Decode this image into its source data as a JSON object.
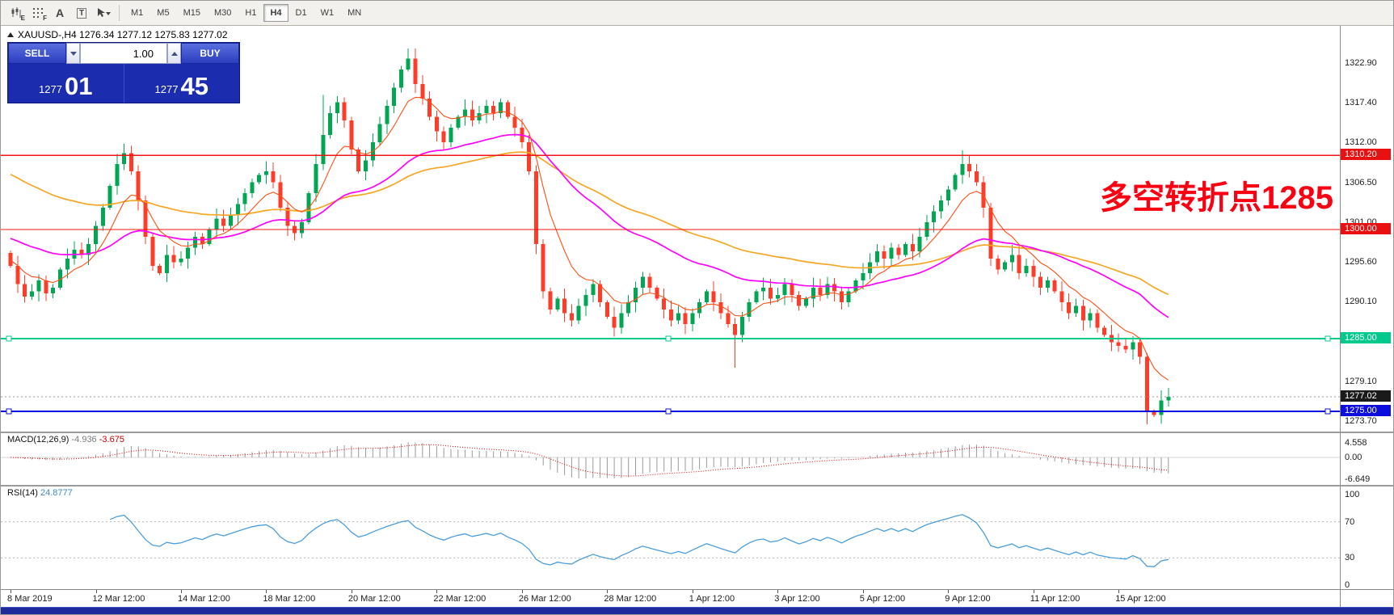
{
  "toolbar": {
    "icons": [
      {
        "name": "chart-type-icon",
        "letter": "E"
      },
      {
        "name": "grid-icon",
        "letter": "F"
      },
      {
        "name": "text-a-icon",
        "letter": "A"
      },
      {
        "name": "text-box-icon",
        "letter": "T"
      },
      {
        "name": "cursor-dropdown-icon",
        "letter": ""
      }
    ],
    "timeframes": [
      "M1",
      "M5",
      "M15",
      "M30",
      "H1",
      "H4",
      "D1",
      "W1",
      "MN"
    ],
    "active_timeframe": "H4"
  },
  "chart": {
    "symbol_line": "XAUUSD-,H4  1276.34 1277.12 1275.83 1277.02",
    "annotation": "多空转折点1285",
    "trade_panel": {
      "sell_label": "SELL",
      "buy_label": "BUY",
      "volume": "1.00",
      "sell_price_small": "1277",
      "sell_price_big": "01",
      "buy_price_small": "1277",
      "buy_price_big": "45"
    },
    "axis_labels": [
      "1322.90",
      "1317.40",
      "1312.00",
      "1306.50",
      "1301.00",
      "1295.60",
      "1290.10",
      "1279.10",
      "1273.70"
    ],
    "axis_values": [
      1322.9,
      1317.4,
      1312.0,
      1306.5,
      1301.0,
      1295.6,
      1290.1,
      1279.1,
      1273.7
    ],
    "price_tags": [
      {
        "text": "1310.20",
        "value": 1310.2,
        "color": "#e81010"
      },
      {
        "text": "1300.00",
        "value": 1300.0,
        "color": "#e81010"
      },
      {
        "text": "1285.00",
        "value": 1285.0,
        "color": "#00c98d"
      },
      {
        "text": "1277.02",
        "value": 1277.02,
        "color": "#1a1a1a"
      },
      {
        "text": "1275.00",
        "value": 1275.0,
        "color": "#0d0de0"
      }
    ]
  },
  "colors": {
    "up": "#00a651",
    "down": "#ff3c28",
    "ma_fast": "#ff4f12",
    "ma_mid": "#ff00ff",
    "ma_slow": "#f5a623",
    "macd_hist": "#9a9a9a",
    "macd_signal": "#e00000",
    "rsi": "#4a9ede",
    "annotation": "#fb0012"
  },
  "chart_data": {
    "type": "candlestick",
    "symbol": "XAUUSD",
    "timeframe": "H4",
    "title": "XAUUSD-,H4",
    "ylim": [
      1272.2,
      1328.0
    ],
    "current_price": 1277.02,
    "open_first": 1296.8,
    "closes": [
      1295.0,
      1292.5,
      1290.8,
      1291.5,
      1293.0,
      1291.2,
      1292.0,
      1294.5,
      1296.0,
      1297.2,
      1296.5,
      1298.0,
      1300.5,
      1303.0,
      1306.0,
      1309.0,
      1310.5,
      1308.0,
      1304.0,
      1299.0,
      1295.0,
      1294.0,
      1296.5,
      1295.5,
      1296.0,
      1297.5,
      1299.0,
      1298.0,
      1300.0,
      1301.5,
      1300.5,
      1302.0,
      1303.5,
      1305.0,
      1306.5,
      1307.5,
      1308.0,
      1306.5,
      1303.0,
      1300.5,
      1299.5,
      1301.0,
      1305.0,
      1309.0,
      1313.0,
      1316.0,
      1317.5,
      1315.0,
      1311.0,
      1308.0,
      1309.5,
      1312.0,
      1314.5,
      1317.0,
      1319.5,
      1322.0,
      1323.5,
      1320.0,
      1318.0,
      1315.5,
      1313.5,
      1312.0,
      1314.0,
      1315.5,
      1316.5,
      1315.0,
      1316.0,
      1317.0,
      1316.0,
      1317.5,
      1315.5,
      1314.0,
      1312.0,
      1308.0,
      1298.0,
      1291.5,
      1289.0,
      1290.5,
      1288.5,
      1287.5,
      1289.5,
      1291.0,
      1292.5,
      1290.0,
      1288.0,
      1286.5,
      1288.5,
      1290.0,
      1292.0,
      1293.5,
      1292.0,
      1290.5,
      1289.0,
      1287.5,
      1288.5,
      1287.0,
      1288.5,
      1290.0,
      1291.5,
      1290.0,
      1288.5,
      1287.0,
      1285.5,
      1288.0,
      1290.0,
      1291.5,
      1292.0,
      1290.5,
      1291.0,
      1292.5,
      1291.0,
      1289.5,
      1290.5,
      1292.0,
      1291.0,
      1292.5,
      1291.5,
      1290.0,
      1291.5,
      1293.0,
      1294.0,
      1295.5,
      1297.0,
      1296.0,
      1297.5,
      1296.5,
      1298.0,
      1297.0,
      1299.0,
      1301.0,
      1302.5,
      1304.0,
      1305.5,
      1307.5,
      1309.0,
      1308.0,
      1306.5,
      1303.0,
      1296.0,
      1294.5,
      1295.5,
      1296.5,
      1294.0,
      1295.0,
      1293.5,
      1292.0,
      1293.0,
      1291.5,
      1290.0,
      1288.5,
      1289.5,
      1287.5,
      1288.5,
      1286.5,
      1285.5,
      1284.5,
      1284.0,
      1283.5,
      1284.5,
      1282.5,
      1275.0,
      1274.5,
      1276.5,
      1277.0
    ],
    "wick_overrides": {
      "16": {
        "h": 1311.8
      },
      "44": {
        "h": 1318.5
      },
      "56": {
        "h": 1324.9
      },
      "102": {
        "l": 1281.0
      },
      "134": {
        "h": 1310.9
      },
      "160": {
        "l": 1273.2
      },
      "163": {
        "h": 1278.2
      }
    },
    "h_lines": [
      {
        "value": 1310.2,
        "color": "#f01515",
        "width": 1.3,
        "handles": false
      },
      {
        "value": 1300.0,
        "color": "#f01515",
        "width": 1.3,
        "handles": false
      },
      {
        "value": 1285.0,
        "color": "#00cc8a",
        "width": 1.6,
        "handles": true
      },
      {
        "value": 1275.0,
        "color": "#0d0de0",
        "width": 2,
        "handles": true
      }
    ],
    "ma_periods": {
      "fast": 8,
      "mid": 34,
      "slow": 60
    },
    "ma_seeds": {
      "fast": 1296,
      "mid": 1299,
      "slow": 1308
    },
    "x_labels": [
      {
        "i": 0,
        "label": "8 Mar 2019"
      },
      {
        "i": 12,
        "label": "12 Mar 12:00"
      },
      {
        "i": 24,
        "label": "14 Mar 12:00"
      },
      {
        "i": 36,
        "label": "18 Mar 12:00"
      },
      {
        "i": 48,
        "label": "20 Mar 12:00"
      },
      {
        "i": 60,
        "label": "22 Mar 12:00"
      },
      {
        "i": 72,
        "label": "26 Mar 12:00"
      },
      {
        "i": 84,
        "label": "28 Mar 12:00"
      },
      {
        "i": 96,
        "label": "1 Apr 12:00"
      },
      {
        "i": 108,
        "label": "3 Apr 12:00"
      },
      {
        "i": 120,
        "label": "5 Apr 12:00"
      },
      {
        "i": 132,
        "label": "9 Apr 12:00"
      },
      {
        "i": 144,
        "label": "11 Apr 12:00"
      },
      {
        "i": 156,
        "label": "15 Apr 12:00"
      }
    ]
  },
  "macd": {
    "label": "MACD(12,26,9)",
    "value_main": "-4.936",
    "value_signal": "-3.675",
    "params": [
      12,
      26,
      9
    ],
    "axis": [
      "4.558",
      "0.00",
      "-6.649"
    ],
    "axis_values": [
      4.558,
      0.0,
      -6.649
    ]
  },
  "rsi": {
    "label": "RSI(14)",
    "value": "24.8777",
    "period": 14,
    "axis": [
      "100",
      "70",
      "30",
      "0"
    ],
    "axis_values": [
      100,
      70,
      30,
      0
    ],
    "levels": [
      70,
      30
    ]
  }
}
